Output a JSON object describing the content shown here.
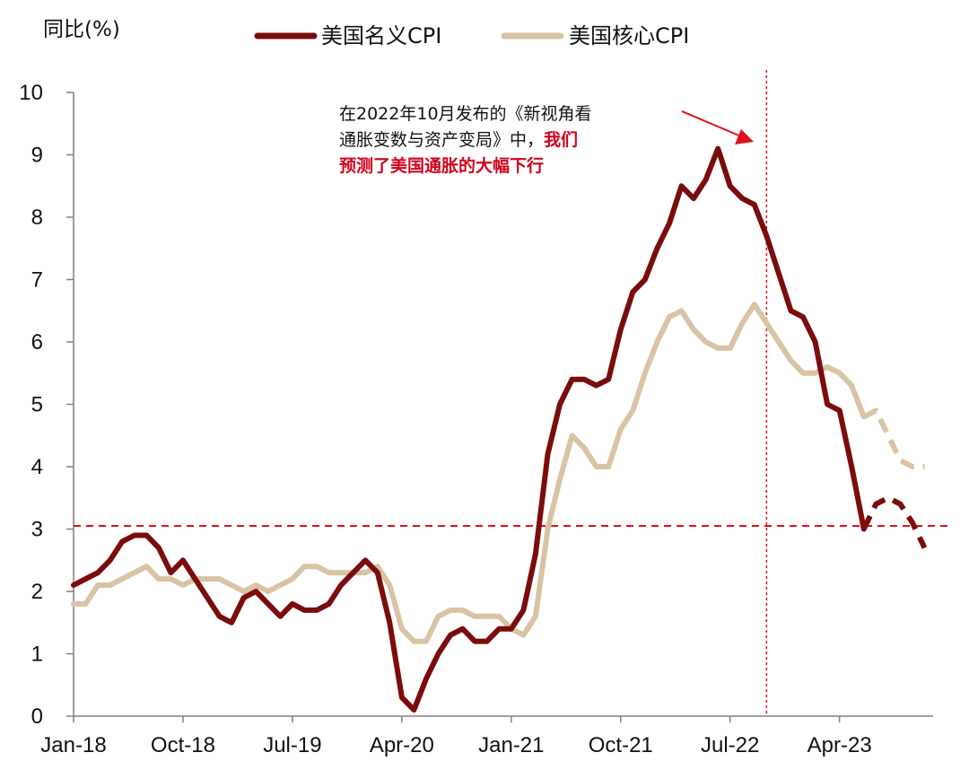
{
  "chart_data": {
    "type": "line",
    "ylabel": "同比(%)",
    "ylim": [
      0,
      10
    ],
    "yticks": [
      "0",
      "1",
      "2",
      "3",
      "4",
      "5",
      "6",
      "7",
      "8",
      "9",
      "10"
    ],
    "xtick_labels": [
      "Jan-18",
      "Oct-18",
      "Jul-19",
      "Apr-20",
      "Jan-21",
      "Oct-21",
      "Jul-22",
      "Apr-23"
    ],
    "x_start": "2018-01",
    "reference_line_y": 3.05,
    "reference_line_x": "2022-10",
    "legend": {
      "position": "top-center"
    },
    "series": [
      {
        "name": "美国名义CPI",
        "color": "#7b0c0c",
        "values": [
          2.1,
          2.2,
          2.3,
          2.5,
          2.8,
          2.9,
          2.9,
          2.7,
          2.3,
          2.5,
          2.2,
          1.9,
          1.6,
          1.5,
          1.9,
          2.0,
          1.8,
          1.6,
          1.8,
          1.7,
          1.7,
          1.8,
          2.1,
          2.3,
          2.5,
          2.3,
          1.5,
          0.3,
          0.1,
          0.6,
          1.0,
          1.3,
          1.4,
          1.2,
          1.2,
          1.4,
          1.4,
          1.7,
          2.6,
          4.2,
          5.0,
          5.4,
          5.4,
          5.3,
          5.4,
          6.2,
          6.8,
          7.0,
          7.5,
          7.9,
          8.5,
          8.3,
          8.6,
          9.1,
          8.5,
          8.3,
          8.2,
          7.7,
          7.1,
          6.5,
          6.4,
          6.0,
          5.0,
          4.9,
          4.0,
          3.0
        ],
        "projection": [
          3.0,
          3.4,
          3.5,
          3.4,
          3.1,
          2.7
        ]
      },
      {
        "name": "美国核心CPI",
        "color": "#d9c3a5",
        "values": [
          1.8,
          1.8,
          2.1,
          2.1,
          2.2,
          2.3,
          2.4,
          2.2,
          2.2,
          2.1,
          2.2,
          2.2,
          2.2,
          2.1,
          2.0,
          2.1,
          2.0,
          2.1,
          2.2,
          2.4,
          2.4,
          2.3,
          2.3,
          2.3,
          2.3,
          2.4,
          2.1,
          1.4,
          1.2,
          1.2,
          1.6,
          1.7,
          1.7,
          1.6,
          1.6,
          1.6,
          1.4,
          1.3,
          1.6,
          3.0,
          3.8,
          4.5,
          4.3,
          4.0,
          4.0,
          4.6,
          4.9,
          5.5,
          6.0,
          6.4,
          6.5,
          6.2,
          6.0,
          5.9,
          5.9,
          6.3,
          6.6,
          6.3,
          6.0,
          5.7,
          5.5,
          5.5,
          5.6,
          5.5,
          5.3,
          4.8
        ],
        "projection": [
          4.8,
          4.9,
          4.5,
          4.1,
          4.0,
          4.0
        ]
      }
    ],
    "annotation": {
      "line1": "在2022年10月发布的《新视角看",
      "line2_black": "通胀变数与资产变局》中，",
      "line2_red": "我们",
      "line3_red": "预测了美国通胀的大幅下行"
    }
  }
}
